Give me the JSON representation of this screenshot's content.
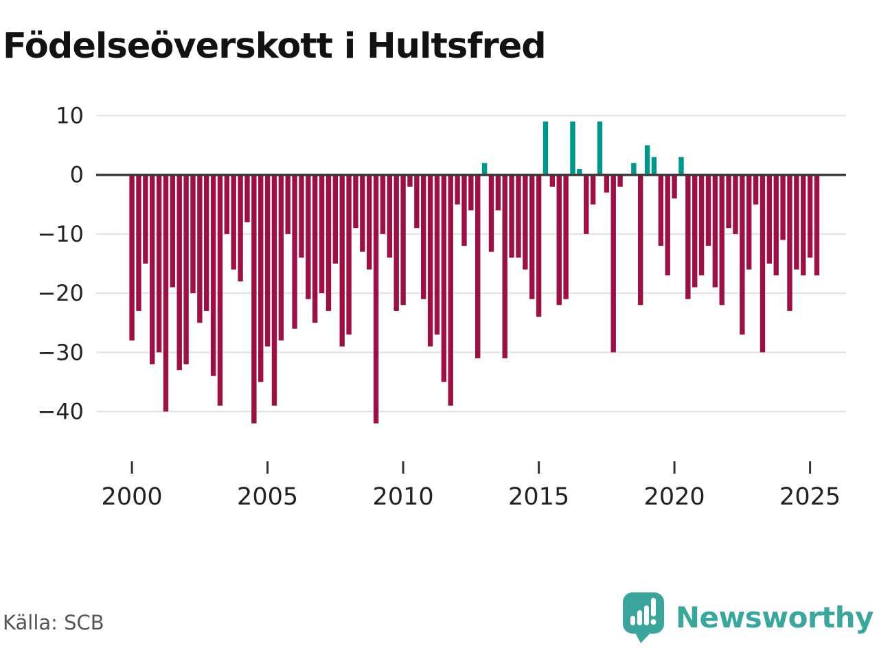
{
  "title": "Födelseöverskott i Hultsfred",
  "source": "Källa: SCB",
  "branding": {
    "name": "Newsworthy",
    "logo_icon": "speech-bubble-bar-chart-icon",
    "logo_color": "#3BA59B",
    "text_color": "#3aa69c"
  },
  "colors": {
    "negative_bar": "#9b1146",
    "positive_bar": "#00968c",
    "zero_line": "#3a3a3a",
    "gridline": "#e3e3e3",
    "title_text": "#121212",
    "axis_text": "#222222",
    "source_text": "#565656"
  },
  "chart_data": {
    "type": "bar",
    "title": "Födelseöverskott i Hultsfred",
    "frequency": "quarterly",
    "start_period": "2000Q1",
    "end_period": "2025Q2",
    "x_tick_labels": [
      "2000",
      "2005",
      "2010",
      "2015",
      "2020",
      "2025"
    ],
    "y_tick_labels": [
      "10",
      "0",
      "−10",
      "−20",
      "−30",
      "−40"
    ],
    "y_tick_values": [
      10,
      0,
      -10,
      -20,
      -30,
      -40
    ],
    "ylim": [
      -45,
      12
    ],
    "grid": "horizontal",
    "legend": "none",
    "series": [
      {
        "name": "Födelseöverskott",
        "values": [
          -28,
          -23,
          -15,
          -32,
          -30,
          -40,
          -19,
          -33,
          -32,
          -20,
          -25,
          -23,
          -34,
          -39,
          -10,
          -16,
          -18,
          -8,
          -42,
          -35,
          -29,
          -39,
          -28,
          -10,
          -26,
          -14,
          -21,
          -25,
          -20,
          -23,
          -15,
          -29,
          -27,
          -9,
          -13,
          -16,
          -42,
          -10,
          -14,
          -23,
          -22,
          -2,
          -9,
          -21,
          -29,
          -27,
          -35,
          -39,
          -5,
          -12,
          -6,
          -31,
          2,
          -13,
          -6,
          -31,
          -14,
          -14,
          -16,
          -21,
          -24,
          9,
          -2,
          -22,
          -21,
          9,
          1,
          -10,
          -5,
          9,
          -3,
          -30,
          -2,
          0,
          2,
          -22,
          5,
          3,
          -12,
          -17,
          -4,
          3,
          -21,
          -19,
          -17,
          -12,
          -19,
          -22,
          -9,
          -10,
          -27,
          -16,
          -5,
          -30,
          -15,
          -17,
          -11,
          -23,
          -16,
          -17,
          -14,
          -17
        ]
      }
    ]
  }
}
